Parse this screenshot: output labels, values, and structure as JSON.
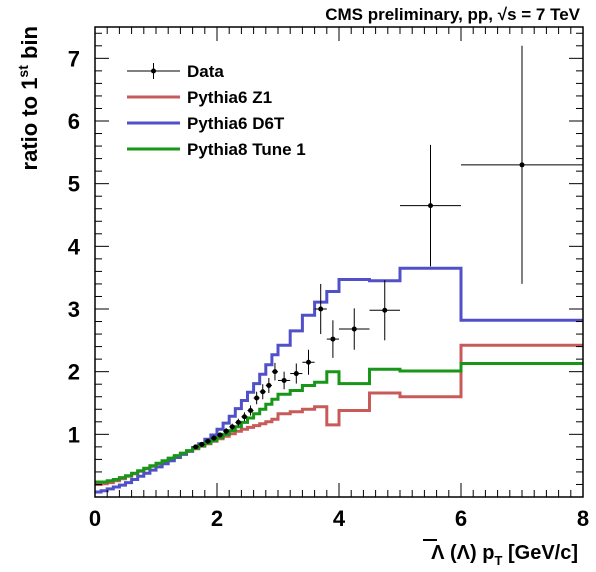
{
  "chart_data": {
    "type": "line",
    "title": "CMS preliminary, pp, √s = 7 TeV",
    "xlabel": "Λ (Λ̄) p_T [GeV/c]",
    "xlabel_parts": {
      "main": "Λ (Λ) p",
      "sub": "T",
      "units": " [GeV/c]"
    },
    "ylabel": "ratio to 1st bin",
    "ylabel_parts": {
      "main": "ratio to 1",
      "sup": "st",
      "end": " bin"
    },
    "xlim": [
      0,
      8
    ],
    "ylim": [
      0,
      7.5
    ],
    "x_ticks": [
      "0",
      "2",
      "4",
      "6",
      "8"
    ],
    "y_ticks": [
      "1",
      "2",
      "3",
      "4",
      "5",
      "6",
      "7"
    ],
    "grid": false,
    "legend_position": "top-left",
    "colors": {
      "data": "#000000",
      "z1": "#c85a5a",
      "d6t": "#5050c8",
      "pythia8": "#189618"
    },
    "series": [
      {
        "name": "Data",
        "style": "points",
        "points": [
          {
            "x": 1.65,
            "y": 0.8,
            "xerr": 0.05,
            "yerr": 0.03
          },
          {
            "x": 1.75,
            "y": 0.84,
            "xerr": 0.05,
            "yerr": 0.03
          },
          {
            "x": 1.85,
            "y": 0.89,
            "xerr": 0.05,
            "yerr": 0.03
          },
          {
            "x": 1.95,
            "y": 0.94,
            "xerr": 0.05,
            "yerr": 0.04
          },
          {
            "x": 2.05,
            "y": 0.99,
            "xerr": 0.05,
            "yerr": 0.04
          },
          {
            "x": 2.15,
            "y": 1.05,
            "xerr": 0.05,
            "yerr": 0.05
          },
          {
            "x": 2.25,
            "y": 1.12,
            "xerr": 0.05,
            "yerr": 0.05
          },
          {
            "x": 2.35,
            "y": 1.19,
            "xerr": 0.05,
            "yerr": 0.06
          },
          {
            "x": 2.45,
            "y": 1.28,
            "xerr": 0.05,
            "yerr": 0.07
          },
          {
            "x": 2.55,
            "y": 1.38,
            "xerr": 0.05,
            "yerr": 0.08
          },
          {
            "x": 2.65,
            "y": 1.58,
            "xerr": 0.05,
            "yerr": 0.1
          },
          {
            "x": 2.75,
            "y": 1.68,
            "xerr": 0.05,
            "yerr": 0.12
          },
          {
            "x": 2.85,
            "y": 1.78,
            "xerr": 0.05,
            "yerr": 0.12
          },
          {
            "x": 2.95,
            "y": 2.0,
            "xerr": 0.05,
            "yerr": 0.14
          },
          {
            "x": 3.1,
            "y": 1.86,
            "xerr": 0.1,
            "yerr": 0.14
          },
          {
            "x": 3.3,
            "y": 1.97,
            "xerr": 0.1,
            "yerr": 0.16
          },
          {
            "x": 3.5,
            "y": 2.15,
            "xerr": 0.1,
            "yerr": 0.2
          },
          {
            "x": 3.7,
            "y": 3.0,
            "xerr": 0.1,
            "yerr": 0.4
          },
          {
            "x": 3.9,
            "y": 2.52,
            "xerr": 0.1,
            "yerr": 0.3
          },
          {
            "x": 4.25,
            "y": 2.68,
            "xerr": 0.25,
            "yerr": 0.33
          },
          {
            "x": 4.75,
            "y": 2.98,
            "xerr": 0.25,
            "yerr": 0.48
          },
          {
            "x": 5.5,
            "y": 4.65,
            "xerr": 0.5,
            "yerr": 0.97
          },
          {
            "x": 7.0,
            "y": 5.3,
            "xerr": 1.0,
            "yerr": 1.9
          }
        ]
      },
      {
        "name": "Pythia6 Z1",
        "style": "step",
        "color_key": "z1",
        "edges": [
          0,
          0.1,
          0.2,
          0.3,
          0.4,
          0.5,
          0.6,
          0.7,
          0.8,
          0.9,
          1.0,
          1.1,
          1.2,
          1.3,
          1.4,
          1.5,
          1.6,
          1.7,
          1.8,
          1.9,
          2.0,
          2.1,
          2.2,
          2.3,
          2.4,
          2.5,
          2.6,
          2.7,
          2.8,
          2.9,
          3.0,
          3.2,
          3.4,
          3.6,
          3.8,
          4.0,
          4.5,
          5.0,
          6.0,
          8.0
        ],
        "values": [
          0.2,
          0.21,
          0.23,
          0.26,
          0.29,
          0.33,
          0.37,
          0.41,
          0.45,
          0.49,
          0.53,
          0.57,
          0.61,
          0.65,
          0.69,
          0.73,
          0.77,
          0.81,
          0.85,
          0.89,
          0.93,
          0.97,
          1.01,
          1.05,
          1.08,
          1.11,
          1.14,
          1.17,
          1.2,
          1.24,
          1.33,
          1.36,
          1.4,
          1.44,
          1.15,
          1.38,
          1.66,
          1.6,
          2.42
        ]
      },
      {
        "name": "Pythia6 D6T",
        "style": "step",
        "color_key": "d6t",
        "edges": [
          0,
          0.1,
          0.2,
          0.3,
          0.4,
          0.5,
          0.6,
          0.7,
          0.8,
          0.9,
          1.0,
          1.1,
          1.2,
          1.3,
          1.4,
          1.5,
          1.6,
          1.7,
          1.8,
          1.9,
          2.0,
          2.1,
          2.2,
          2.3,
          2.4,
          2.5,
          2.6,
          2.7,
          2.8,
          2.9,
          3.0,
          3.2,
          3.4,
          3.6,
          3.8,
          4.0,
          4.5,
          5.0,
          6.0,
          8.0
        ],
        "values": [
          0.08,
          0.1,
          0.13,
          0.16,
          0.19,
          0.23,
          0.28,
          0.33,
          0.38,
          0.43,
          0.48,
          0.53,
          0.58,
          0.63,
          0.68,
          0.73,
          0.79,
          0.85,
          0.92,
          0.99,
          1.08,
          1.18,
          1.29,
          1.41,
          1.54,
          1.67,
          1.81,
          1.96,
          2.11,
          2.27,
          2.42,
          2.65,
          2.9,
          3.11,
          3.28,
          3.47,
          3.45,
          3.65,
          2.82
        ]
      },
      {
        "name": "Pythia8 Tune 1",
        "style": "step",
        "color_key": "pythia8",
        "edges": [
          0,
          0.1,
          0.2,
          0.3,
          0.4,
          0.5,
          0.6,
          0.7,
          0.8,
          0.9,
          1.0,
          1.1,
          1.2,
          1.3,
          1.4,
          1.5,
          1.6,
          1.7,
          1.8,
          1.9,
          2.0,
          2.1,
          2.2,
          2.3,
          2.4,
          2.5,
          2.6,
          2.7,
          2.8,
          2.9,
          3.0,
          3.2,
          3.4,
          3.6,
          3.8,
          4.0,
          4.5,
          5.0,
          6.0,
          8.0
        ],
        "values": [
          0.24,
          0.24,
          0.26,
          0.28,
          0.31,
          0.34,
          0.38,
          0.42,
          0.46,
          0.5,
          0.54,
          0.58,
          0.62,
          0.66,
          0.7,
          0.74,
          0.78,
          0.82,
          0.86,
          0.9,
          0.95,
          1.0,
          1.06,
          1.12,
          1.19,
          1.26,
          1.33,
          1.4,
          1.48,
          1.56,
          1.64,
          1.7,
          1.78,
          1.83,
          2.0,
          1.81,
          2.04,
          2.01,
          2.13
        ]
      }
    ]
  }
}
